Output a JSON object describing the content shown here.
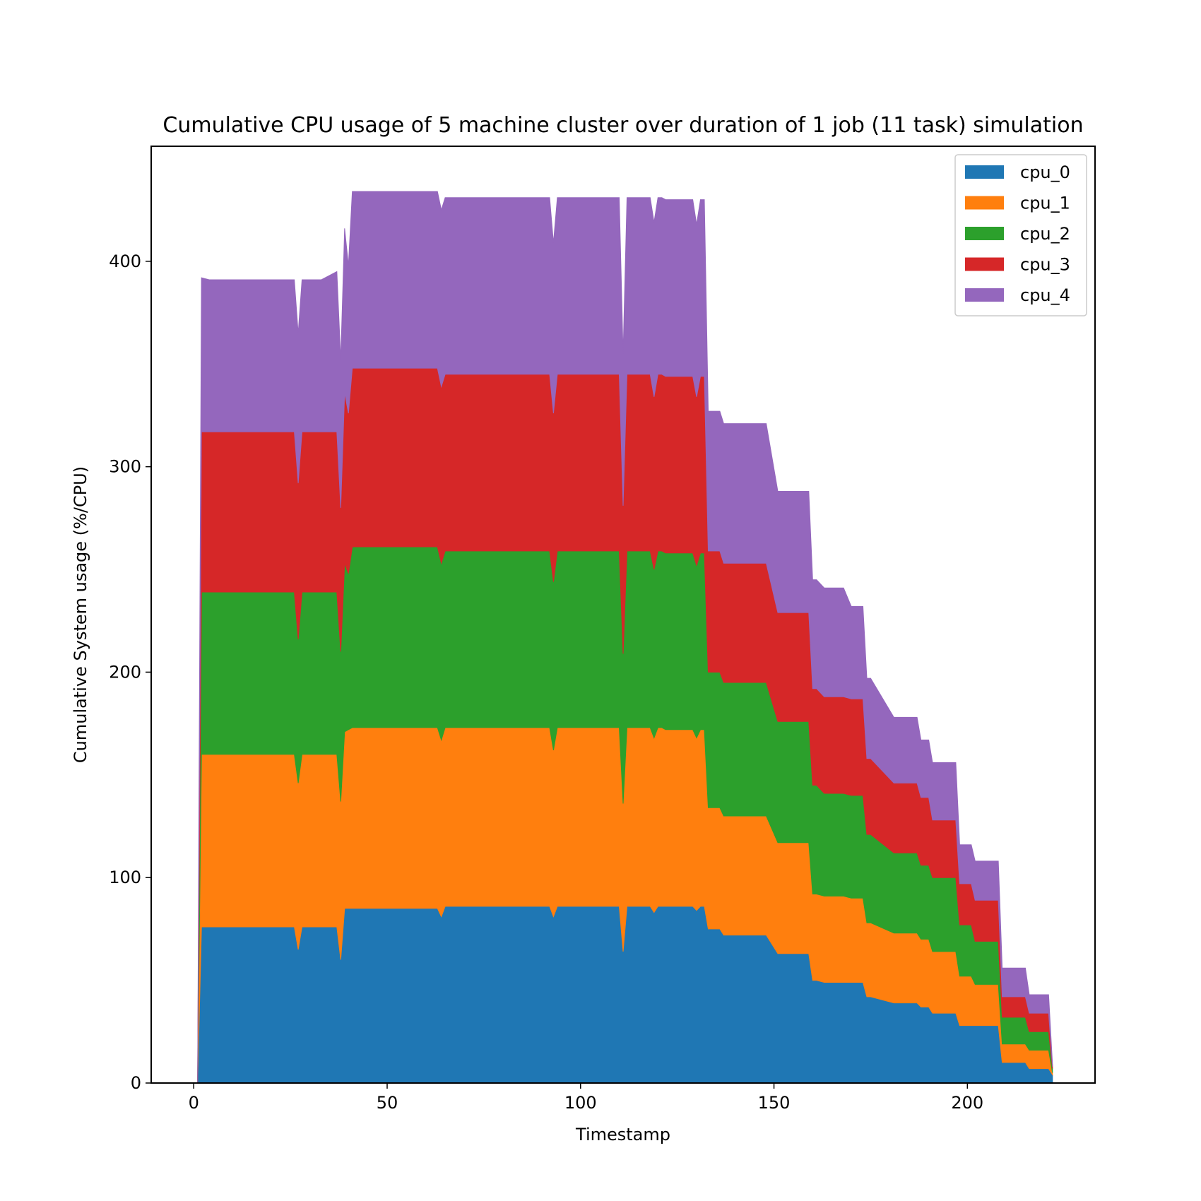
{
  "chart_data": {
    "type": "area",
    "stacked": true,
    "title": "Cumulative CPU usage of 5 machine cluster over duration of 1 job (11 task) simulation",
    "xlabel": "Timestamp",
    "ylabel": "Cumulative System usage (%/CPU)",
    "xlim": [
      -11,
      233
    ],
    "ylim": [
      0,
      456
    ],
    "xticks": [
      0,
      50,
      100,
      150,
      200
    ],
    "yticks": [
      0,
      100,
      200,
      300,
      400
    ],
    "grid": false,
    "legend_position": "top-right",
    "x": [
      1,
      2,
      4,
      10,
      12,
      14,
      26,
      27,
      28,
      31,
      32,
      33,
      37,
      38,
      39,
      40,
      41,
      50,
      52,
      53,
      58,
      59,
      60,
      61,
      63,
      64,
      65,
      74,
      75,
      76,
      92,
      93,
      94,
      110,
      111,
      112,
      118,
      119,
      120,
      121,
      122,
      123,
      124,
      125,
      126,
      129,
      130,
      131,
      132,
      133,
      134,
      136,
      137,
      141,
      142,
      147,
      148,
      151,
      152,
      155,
      156,
      158,
      159,
      160,
      161,
      163,
      164,
      167,
      168,
      170,
      171,
      172,
      173,
      174,
      175,
      181,
      182,
      183,
      184,
      185,
      186,
      187,
      188,
      190,
      191,
      192,
      193,
      194,
      195,
      197,
      198,
      201,
      202,
      203,
      204,
      208,
      209,
      210,
      211,
      212,
      213,
      215,
      216,
      219,
      220,
      221,
      222
    ],
    "series": [
      {
        "name": "cpu_0",
        "color": "#1f77b4",
        "values": [
          0,
          76,
          76,
          76,
          76,
          76,
          76,
          65,
          76,
          76,
          76,
          76,
          76,
          60,
          85,
          85,
          85,
          85,
          85,
          85,
          85,
          85,
          85,
          85,
          85,
          81,
          86,
          86,
          86,
          86,
          86,
          81,
          86,
          86,
          64,
          86,
          86,
          83,
          86,
          86,
          86,
          86,
          86,
          86,
          86,
          86,
          84,
          86,
          86,
          75,
          75,
          75,
          72,
          72,
          72,
          72,
          72,
          63,
          63,
          63,
          63,
          63,
          63,
          50,
          50,
          49,
          49,
          49,
          49,
          49,
          49,
          49,
          49,
          42,
          42,
          39,
          39,
          39,
          39,
          39,
          39,
          39,
          37,
          37,
          34,
          34,
          34,
          34,
          34,
          34,
          28,
          28,
          28,
          28,
          28,
          28,
          10,
          10,
          10,
          10,
          10,
          10,
          7,
          7,
          7,
          7,
          4
        ]
      },
      {
        "name": "cpu_1",
        "color": "#ff7f0e",
        "values": [
          0,
          84,
          84,
          84,
          84,
          84,
          84,
          81,
          84,
          84,
          84,
          84,
          84,
          77,
          86,
          87,
          88,
          88,
          88,
          88,
          88,
          88,
          88,
          88,
          88,
          86,
          87,
          87,
          87,
          87,
          87,
          81,
          87,
          87,
          72,
          87,
          87,
          85,
          87,
          87,
          86,
          86,
          86,
          86,
          86,
          86,
          84,
          86,
          86,
          59,
          59,
          59,
          58,
          58,
          58,
          58,
          58,
          54,
          54,
          54,
          54,
          54,
          54,
          42,
          42,
          42,
          42,
          42,
          42,
          41,
          41,
          41,
          41,
          36,
          36,
          34,
          34,
          34,
          34,
          34,
          34,
          34,
          33,
          33,
          30,
          30,
          30,
          30,
          30,
          30,
          24,
          24,
          20,
          20,
          20,
          20,
          9,
          9,
          9,
          9,
          9,
          9,
          9,
          9,
          9,
          9,
          1
        ]
      },
      {
        "name": "cpu_2",
        "color": "#2ca02c",
        "values": [
          0,
          79,
          79,
          79,
          79,
          79,
          79,
          70,
          79,
          79,
          79,
          79,
          79,
          73,
          82,
          76,
          88,
          88,
          88,
          88,
          88,
          88,
          88,
          88,
          88,
          86,
          86,
          86,
          86,
          86,
          86,
          82,
          86,
          86,
          73,
          86,
          86,
          82,
          86,
          86,
          86,
          86,
          86,
          86,
          86,
          86,
          84,
          86,
          86,
          66,
          66,
          66,
          65,
          65,
          65,
          65,
          65,
          59,
          59,
          59,
          59,
          59,
          59,
          53,
          53,
          50,
          50,
          50,
          50,
          50,
          50,
          50,
          50,
          43,
          43,
          39,
          39,
          39,
          39,
          39,
          39,
          39,
          36,
          36,
          36,
          36,
          36,
          36,
          36,
          36,
          25,
          25,
          21,
          21,
          21,
          21,
          13,
          13,
          13,
          13,
          13,
          13,
          9,
          9,
          9,
          9,
          2
        ]
      },
      {
        "name": "cpu_3",
        "color": "#d62728",
        "values": [
          0,
          78,
          78,
          78,
          78,
          78,
          78,
          76,
          78,
          78,
          78,
          78,
          78,
          70,
          83,
          78,
          87,
          87,
          87,
          87,
          87,
          87,
          87,
          87,
          87,
          86,
          86,
          86,
          86,
          86,
          86,
          82,
          86,
          86,
          72,
          86,
          86,
          84,
          86,
          86,
          86,
          86,
          86,
          86,
          86,
          86,
          82,
          86,
          86,
          59,
          59,
          59,
          58,
          58,
          58,
          58,
          58,
          53,
          53,
          53,
          53,
          53,
          53,
          47,
          47,
          47,
          47,
          47,
          47,
          47,
          47,
          47,
          47,
          37,
          37,
          34,
          34,
          34,
          34,
          34,
          34,
          34,
          33,
          33,
          28,
          28,
          28,
          28,
          28,
          28,
          20,
          20,
          20,
          20,
          20,
          20,
          10,
          10,
          10,
          10,
          10,
          10,
          9,
          9,
          9,
          9,
          1
        ]
      },
      {
        "name": "cpu_4",
        "color": "#9467bd",
        "values": [
          0,
          75,
          74,
          74,
          74,
          74,
          74,
          73,
          74,
          74,
          74,
          74,
          78,
          72,
          80,
          72,
          86,
          86,
          86,
          86,
          86,
          86,
          86,
          86,
          86,
          86,
          86,
          86,
          86,
          86,
          86,
          83,
          86,
          86,
          74,
          86,
          86,
          85,
          86,
          86,
          86,
          86,
          86,
          86,
          86,
          86,
          84,
          86,
          86,
          68,
          68,
          68,
          68,
          68,
          68,
          68,
          68,
          59,
          59,
          59,
          59,
          59,
          59,
          53,
          53,
          53,
          53,
          53,
          53,
          45,
          45,
          45,
          45,
          39,
          39,
          32,
          32,
          32,
          32,
          32,
          32,
          32,
          28,
          28,
          28,
          28,
          28,
          28,
          28,
          28,
          19,
          19,
          19,
          19,
          19,
          19,
          14,
          14,
          14,
          14,
          14,
          14,
          9,
          9,
          9,
          9,
          1
        ]
      }
    ]
  }
}
